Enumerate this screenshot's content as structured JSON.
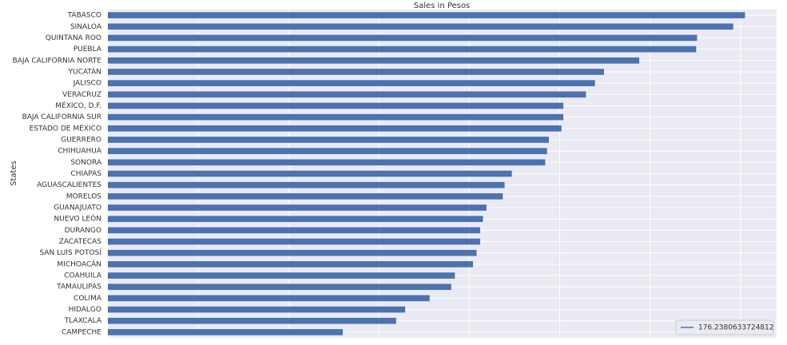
{
  "chart_data": {
    "type": "barh",
    "title": "Sales in Pesos",
    "ylabel": "States",
    "categories": [
      "TABASCO",
      "SINALOA",
      "QUINTANA ROO",
      "PUEBLA",
      "BAJA CALIFORNIA NORTE",
      "YUCATÁN",
      "JALISCO",
      "VERACRUZ",
      "MÉXICO, D.F.",
      "BAJA CALIFORNIA SUR",
      "ESTADO DE MÉXICO",
      "GUERRERO",
      "CHIHUAHUA",
      "SONORA",
      "CHIAPAS",
      "AGUASCALIENTES",
      "MORELOS",
      "GUANAJUATO",
      "NUEVO LEÓN",
      "DURANGO",
      "ZACATECAS",
      "SAN LUIS POTOSÍ",
      "MICHOACÁN",
      "COAHUILA",
      "TAMAULIPAS",
      "COLIMA",
      "HIDALGO",
      "TLAXCALA",
      "CAMPECHE"
    ],
    "series": [
      {
        "name": "176.2380633724812",
        "color": "#4c72b0",
        "values": [
          7.05,
          6.92,
          6.52,
          6.51,
          5.88,
          5.49,
          5.39,
          5.29,
          5.04,
          5.04,
          5.02,
          4.88,
          4.86,
          4.84,
          4.47,
          4.39,
          4.37,
          4.19,
          4.15,
          4.12,
          4.12,
          4.08,
          4.04,
          3.84,
          3.8,
          3.56,
          3.29,
          3.19,
          2.6
        ]
      }
    ],
    "xlim": [
      0,
      7.4
    ],
    "xticks": [
      0,
      1,
      2,
      3,
      4,
      5,
      6,
      7
    ],
    "grid": true,
    "legend": "lower right"
  }
}
